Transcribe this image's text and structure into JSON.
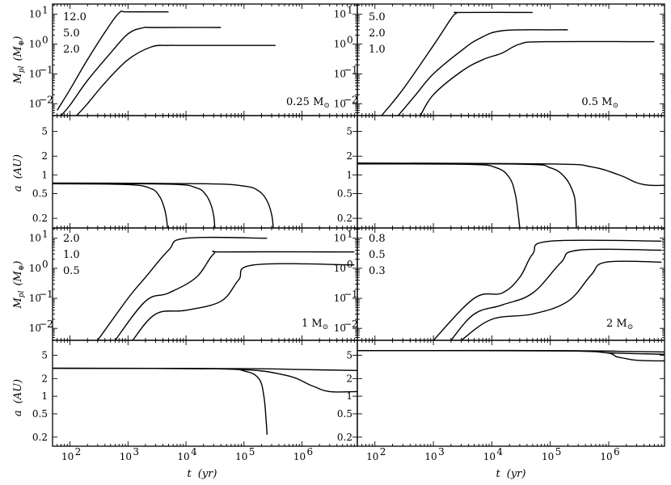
{
  "chart_data": [
    {
      "type": "line",
      "panel": "mass-0.25",
      "log_x": true,
      "log_y": true,
      "xlim": [
        50,
        9000000
      ],
      "ylim": [
        0.004,
        22
      ],
      "ylabel": "M_pl (M_⊕)",
      "annotation": "0.25 M_⊙",
      "legend_labels": [
        "12.0",
        "5.0",
        "2.0"
      ],
      "series": [
        {
          "x": [
            60,
            100,
            200,
            400,
            700,
            1000,
            5000
          ],
          "y": [
            0.006,
            0.03,
            0.3,
            2.5,
            11,
            12,
            12
          ]
        },
        {
          "x": [
            70,
            100,
            200,
            500,
            1000,
            1800,
            3000,
            40000
          ],
          "y": [
            0.004,
            0.009,
            0.06,
            0.5,
            2.2,
            3.5,
            3.6,
            3.6
          ]
        },
        {
          "x": [
            130,
            200,
            400,
            1000,
            2500,
            5000,
            10000,
            350000
          ],
          "y": [
            0.004,
            0.01,
            0.05,
            0.3,
            0.8,
            0.9,
            0.9,
            0.9
          ]
        }
      ]
    },
    {
      "type": "line",
      "panel": "mass-0.5",
      "log_x": true,
      "log_y": true,
      "xlim": [
        50,
        9000000
      ],
      "ylim": [
        0.004,
        22
      ],
      "annotation": "0.5 M_⊙",
      "legend_labels": [
        "5.0",
        "2.0",
        "1.0"
      ],
      "series": [
        {
          "x": [
            130,
            300,
            1000,
            2000,
            2500,
            3000,
            50000
          ],
          "y": [
            0.004,
            0.03,
            0.9,
            7,
            11,
            11.5,
            11.5
          ]
        },
        {
          "x": [
            250,
            500,
            1000,
            3000,
            6000,
            15000,
            100000,
            200000
          ],
          "y": [
            0.004,
            0.02,
            0.1,
            0.6,
            1.5,
            2.8,
            3,
            3
          ]
        },
        {
          "x": [
            600,
            1000,
            3000,
            7000,
            15000,
            30000,
            80000,
            6000000
          ],
          "y": [
            0.004,
            0.02,
            0.12,
            0.3,
            0.5,
            1,
            1.2,
            1.2
          ]
        }
      ]
    },
    {
      "type": "line",
      "panel": "semimajor-0.25",
      "log_x": true,
      "log_y": true,
      "xlim": [
        50,
        9000000
      ],
      "ylim": [
        0.14,
        9
      ],
      "ylabel": "a (AU)",
      "series": [
        {
          "x": [
            50,
            1000,
            2500,
            3500,
            4200,
            4600,
            4800
          ],
          "y": [
            0.72,
            0.7,
            0.6,
            0.45,
            0.3,
            0.2,
            0.14
          ]
        },
        {
          "x": [
            50,
            5000,
            15000,
            22000,
            27000,
            30000,
            31500
          ],
          "y": [
            0.73,
            0.71,
            0.62,
            0.48,
            0.33,
            0.22,
            0.14
          ]
        },
        {
          "x": [
            50,
            20000,
            100000,
            180000,
            250000,
            300000,
            320000
          ],
          "y": [
            0.74,
            0.72,
            0.66,
            0.55,
            0.38,
            0.23,
            0.14
          ]
        }
      ]
    },
    {
      "type": "line",
      "panel": "semimajor-0.5",
      "log_x": true,
      "log_y": true,
      "xlim": [
        50,
        9000000
      ],
      "ylim": [
        0.14,
        9
      ],
      "series": [
        {
          "x": [
            50,
            4000,
            12000,
            20000,
            25000,
            28000,
            30000
          ],
          "y": [
            1.5,
            1.48,
            1.3,
            0.9,
            0.5,
            0.25,
            0.14
          ]
        },
        {
          "x": [
            50,
            30000,
            100000,
            180000,
            250000,
            270000,
            280000
          ],
          "y": [
            1.52,
            1.49,
            1.3,
            0.9,
            0.5,
            0.3,
            0.14
          ]
        },
        {
          "x": [
            50,
            100000,
            500000,
            1500000,
            3000000,
            5000000,
            9000000
          ],
          "y": [
            1.55,
            1.5,
            1.35,
            1.0,
            0.75,
            0.68,
            0.68
          ]
        }
      ]
    },
    {
      "type": "line",
      "panel": "mass-1",
      "log_x": true,
      "log_y": true,
      "xlim": [
        50,
        9000000
      ],
      "ylim": [
        0.004,
        22
      ],
      "ylabel": "M_pl (M_⊕)",
      "annotation": "1 M_⊙",
      "legend_labels": [
        "2.0",
        "1.0",
        "0.5"
      ],
      "series": [
        {
          "x": [
            300,
            1000,
            2000,
            5000,
            10000,
            250000
          ],
          "y": [
            0.004,
            0.1,
            0.5,
            4,
            10,
            10
          ]
        },
        {
          "x": [
            600,
            2000,
            5000,
            15000,
            30000,
            50000,
            8000000
          ],
          "y": [
            0.004,
            0.08,
            0.15,
            0.5,
            3,
            3.5,
            3.5
          ]
        },
        {
          "x": [
            1200,
            3000,
            10000,
            40000,
            80000,
            150000,
            8000000
          ],
          "y": [
            0.004,
            0.03,
            0.04,
            0.08,
            0.4,
            1.3,
            1.3
          ]
        }
      ]
    },
    {
      "type": "line",
      "panel": "mass-2",
      "log_x": true,
      "log_y": true,
      "xlim": [
        50,
        9000000
      ],
      "ylim": [
        0.004,
        22
      ],
      "annotation": "2 M_⊙",
      "legend_labels": [
        "0.8",
        "0.5",
        "0.3"
      ],
      "series": [
        {
          "x": [
            1000,
            5000,
            15000,
            30000,
            50000,
            100000,
            8000000
          ],
          "y": [
            0.004,
            0.1,
            0.15,
            0.5,
            3,
            8,
            8
          ]
        },
        {
          "x": [
            2000,
            5000,
            15000,
            50000,
            150000,
            300000,
            8000000
          ],
          "y": [
            0.004,
            0.03,
            0.06,
            0.15,
            1.5,
            4,
            4
          ]
        },
        {
          "x": [
            3000,
            10000,
            50000,
            200000,
            500000,
            900000,
            8000000
          ],
          "y": [
            0.004,
            0.02,
            0.03,
            0.08,
            0.6,
            1.6,
            1.6
          ]
        }
      ]
    },
    {
      "type": "line",
      "panel": "semimajor-1",
      "log_x": true,
      "log_y": true,
      "xlim": [
        50,
        9000000
      ],
      "ylim": [
        0.14,
        9
      ],
      "xlabel": "t (yr)",
      "ylabel": "a (AU)",
      "series": [
        {
          "x": [
            50,
            30000,
            100000,
            180000,
            220000,
            240000,
            250000
          ],
          "y": [
            3.0,
            2.95,
            2.7,
            2.0,
            1.0,
            0.4,
            0.22
          ]
        },
        {
          "x": [
            50,
            50000,
            500000,
            1500000,
            3000000,
            9000000
          ],
          "y": [
            3.0,
            2.9,
            2.3,
            1.5,
            1.2,
            1.2
          ]
        },
        {
          "x": [
            50,
            100000,
            1000000,
            9000000
          ],
          "y": [
            3.0,
            2.95,
            2.85,
            2.75
          ]
        }
      ]
    },
    {
      "type": "line",
      "panel": "semimajor-2",
      "log_x": true,
      "log_y": true,
      "xlim": [
        50,
        9000000
      ],
      "ylim": [
        0.14,
        9
      ],
      "xlabel": "t (yr)",
      "series": [
        {
          "x": [
            50,
            200000,
            1000000,
            9000000
          ],
          "y": [
            6.0,
            5.95,
            5.5,
            5.2
          ]
        },
        {
          "x": [
            50,
            300000,
            1500000,
            3000000,
            9000000
          ],
          "y": [
            6.0,
            5.9,
            4.6,
            4.1,
            4.0
          ]
        },
        {
          "x": [
            50,
            300000,
            2000000,
            9000000
          ],
          "y": [
            6.0,
            5.95,
            5.8,
            5.7
          ]
        }
      ]
    }
  ],
  "tick_labels": {
    "x": [
      "10^2",
      "10^3",
      "10^4",
      "10^5",
      "10^6"
    ],
    "y_mass": [
      "10^1",
      "10^0",
      "10^-1",
      "10^-2"
    ],
    "y_a": [
      "5",
      "2",
      "1",
      "0.5",
      "0.2"
    ]
  },
  "axis_labels": {
    "t": "t",
    "t_unit": "(yr)",
    "mpl": "M",
    "mpl_sub": "pl",
    "mpl_unit": "(M",
    "mpl_unit_sym": "⊕",
    "mpl_close": ")",
    "a": "a",
    "a_unit": "(AU)"
  },
  "annotations": {
    "p1": "0.25 M",
    "p2": "0.5 M",
    "p3": "1 M",
    "p4": "2 M",
    "sun": "⊙"
  },
  "legend": {
    "p1": [
      "12.0",
      "5.0",
      "2.0"
    ],
    "p2": [
      "5.0",
      "2.0",
      "1.0"
    ],
    "p3": [
      "2.0",
      "1.0",
      "0.5"
    ],
    "p4": [
      "0.8",
      "0.5",
      "0.3"
    ]
  }
}
